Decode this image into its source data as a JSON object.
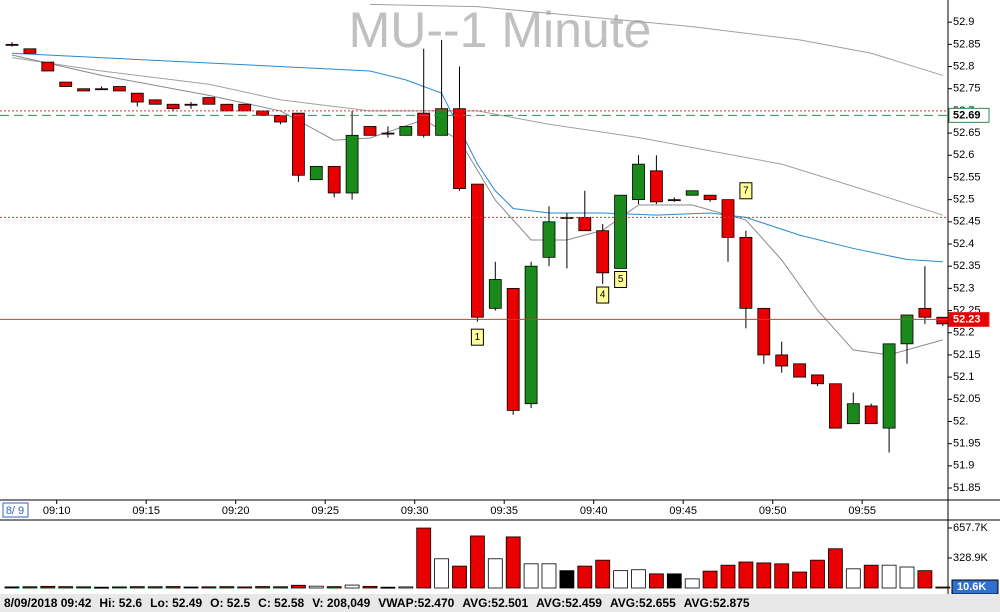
{
  "chart_data": {
    "type": "candlestick",
    "title": "MU--1 Minute",
    "date_label": "8/ 9",
    "categories": [
      null,
      null,
      null,
      "09:10",
      null,
      null,
      null,
      null,
      "09:15",
      null,
      null,
      null,
      null,
      "09:20",
      null,
      null,
      null,
      null,
      "09:25",
      null,
      null,
      null,
      null,
      "09:30",
      null,
      null,
      null,
      null,
      "09:35",
      null,
      null,
      null,
      null,
      "09:40",
      null,
      null,
      null,
      null,
      "09:45",
      null,
      null,
      null,
      null,
      "09:50",
      null,
      null,
      null,
      null,
      "09:55",
      null,
      null,
      null,
      null
    ],
    "open": [
      52.85,
      52.84,
      52.81,
      52.765,
      52.75,
      52.75,
      52.755,
      52.74,
      52.725,
      52.715,
      52.715,
      52.73,
      52.715,
      52.715,
      52.7,
      52.69,
      52.695,
      52.545,
      52.575,
      52.515,
      52.665,
      52.65,
      52.645,
      52.695,
      52.645,
      52.705,
      52.535,
      52.255,
      52.3,
      52.04,
      52.37,
      52.46,
      52.46,
      52.43,
      52.345,
      52.5,
      52.565,
      52.5,
      52.51,
      52.51,
      52.5,
      52.415,
      52.255,
      52.15,
      52.13,
      52.105,
      52.085,
      51.995,
      52.035,
      51.985,
      52.175,
      52.255,
      52.235
    ],
    "high": [
      52.855,
      52.84,
      52.81,
      52.765,
      52.75,
      52.755,
      52.755,
      52.74,
      52.725,
      52.715,
      52.72,
      52.73,
      52.715,
      52.715,
      52.7,
      52.69,
      52.695,
      52.575,
      52.575,
      52.7,
      52.665,
      52.665,
      52.665,
      52.84,
      52.86,
      52.8,
      52.535,
      52.36,
      52.3,
      52.36,
      52.485,
      52.47,
      52.52,
      52.445,
      52.51,
      52.6,
      52.6,
      52.505,
      52.52,
      52.51,
      52.5,
      52.43,
      52.255,
      52.18,
      52.13,
      52.105,
      52.085,
      52.065,
      52.04,
      52.175,
      52.24,
      52.35,
      52.235
    ],
    "low": [
      52.845,
      52.83,
      52.79,
      52.755,
      52.745,
      52.75,
      52.745,
      52.71,
      52.715,
      52.7,
      52.705,
      52.715,
      52.7,
      52.7,
      52.69,
      52.67,
      52.54,
      52.545,
      52.505,
      52.5,
      52.645,
      52.64,
      52.645,
      52.64,
      52.645,
      52.52,
      52.225,
      52.25,
      52.015,
      52.03,
      52.35,
      52.345,
      52.43,
      52.31,
      52.345,
      52.49,
      52.49,
      52.495,
      52.51,
      52.495,
      52.36,
      52.21,
      52.13,
      52.11,
      52.1,
      52.08,
      51.985,
      51.995,
      51.995,
      51.93,
      52.13,
      52.22,
      52.215
    ],
    "close": [
      52.85,
      52.83,
      52.79,
      52.755,
      52.745,
      52.75,
      52.745,
      52.72,
      52.715,
      52.705,
      52.715,
      52.715,
      52.7,
      52.7,
      52.69,
      52.675,
      52.555,
      52.575,
      52.515,
      52.645,
      52.645,
      52.65,
      52.665,
      52.645,
      52.705,
      52.525,
      52.235,
      52.32,
      52.025,
      52.35,
      52.45,
      52.46,
      52.43,
      52.335,
      52.51,
      52.58,
      52.495,
      52.5,
      52.52,
      52.5,
      52.415,
      52.255,
      52.15,
      52.125,
      52.1,
      52.085,
      51.985,
      52.04,
      51.995,
      52.175,
      52.24,
      52.235,
      52.22
    ],
    "up_color": "#1a8a1a",
    "down_color": "#e80000",
    "ylim": [
      51.823,
      52.95
    ],
    "yticks": [
      52.9,
      52.85,
      52.8,
      52.75,
      52.7,
      52.65,
      52.6,
      52.55,
      52.5,
      52.45,
      52.4,
      52.35,
      52.3,
      52.25,
      52.2,
      52.15,
      52.1,
      52.05,
      {
        "value": 52,
        "label": "52."
      },
      51.95,
      51.9,
      51.85
    ],
    "lines": [
      {
        "color": "#a0a0a0",
        "x": [
          20,
          26,
          30,
          38,
          44,
          48,
          52
        ],
        "values": [
          52.94,
          52.935,
          52.92,
          52.89,
          52.86,
          52.83,
          52.78
        ]
      },
      {
        "color": "#a0a0a0",
        "x": [
          0,
          5,
          11,
          15,
          20,
          22,
          26,
          30,
          35,
          39,
          43,
          47,
          52
        ],
        "values": [
          52.82,
          52.79,
          52.76,
          52.725,
          52.7,
          52.7,
          52.7,
          52.67,
          52.64,
          52.61,
          52.58,
          52.53,
          52.465
        ]
      },
      {
        "color": "#8a8a8a",
        "x": [
          0,
          5,
          11,
          15,
          18,
          20,
          23,
          25,
          27,
          29,
          31,
          33,
          35,
          38,
          41,
          43,
          45,
          47,
          49,
          52
        ],
        "values": [
          52.826,
          52.78,
          52.735,
          52.7,
          52.634,
          52.639,
          52.68,
          52.634,
          52.499,
          52.409,
          52.409,
          52.431,
          52.488,
          52.488,
          52.454,
          52.364,
          52.251,
          52.161,
          52.15,
          52.184
        ]
      },
      {
        "color": "#2a8ad0",
        "x": [
          0,
          10,
          20,
          22,
          24,
          25,
          26,
          27,
          28,
          30,
          33,
          36,
          39,
          41,
          44,
          47,
          50,
          52
        ],
        "values": [
          52.83,
          52.81,
          52.79,
          52.77,
          52.74,
          52.66,
          52.58,
          52.52,
          52.48,
          52.47,
          52.47,
          52.465,
          52.47,
          52.46,
          52.42,
          52.39,
          52.365,
          52.36
        ]
      }
    ],
    "hlines": [
      {
        "value": 52.7,
        "color": "#e03030",
        "style": "dotted"
      },
      {
        "value": 52.69,
        "color": "#2e8b57",
        "style": "dashed",
        "box_color": "#ffffff",
        "text_color": "#000000"
      },
      {
        "value": 52.46,
        "color": "#e03030",
        "style": "dotted"
      },
      {
        "value": 52.23,
        "color": "#e03030",
        "style": "solid",
        "box_color": "#e80000",
        "text_color": "#ffffff"
      }
    ],
    "annotations": [
      {
        "label": "1",
        "x": 26,
        "y": 52.19
      },
      {
        "label": "4",
        "x": 33,
        "y": 52.285
      },
      {
        "label": "5",
        "x": 34,
        "y": 52.32
      },
      {
        "label": "7",
        "x": 41,
        "y": 52.52
      }
    ],
    "volume": {
      "values": [
        12000,
        14000,
        18000,
        15000,
        13000,
        9000,
        12000,
        15000,
        14000,
        16000,
        11000,
        13000,
        15000,
        12000,
        16000,
        14000,
        30000,
        20000,
        15000,
        32000,
        18000,
        9000,
        12000,
        657000,
        320000,
        240000,
        570000,
        320000,
        560000,
        265000,
        265000,
        190000,
        240000,
        305000,
        190000,
        200000,
        155000,
        155000,
        100000,
        185000,
        250000,
        285000,
        275000,
        265000,
        175000,
        305000,
        430000,
        210000,
        250000,
        250000,
        230000,
        190000,
        10600
      ],
      "last_value_label": "10.6K",
      "up_color": "#ffffff",
      "down_color": "#e80000",
      "flat_color": "#000000",
      "ylim": [
        0,
        767000
      ],
      "yticks": [
        {
          "value": 657700,
          "label": "657.7K"
        },
        {
          "value": 328900,
          "label": "328.9K"
        }
      ]
    },
    "status": [
      "8/09/2018 09:42",
      "Hi: 52.6",
      "Lo: 52.49",
      "O: 52.5",
      "C: 52.58",
      "V: 208,049",
      "VWAP:52.470",
      "AVG:52.501",
      "AVG:52.459",
      "AVG:52.655",
      "AVG:52.875"
    ]
  }
}
